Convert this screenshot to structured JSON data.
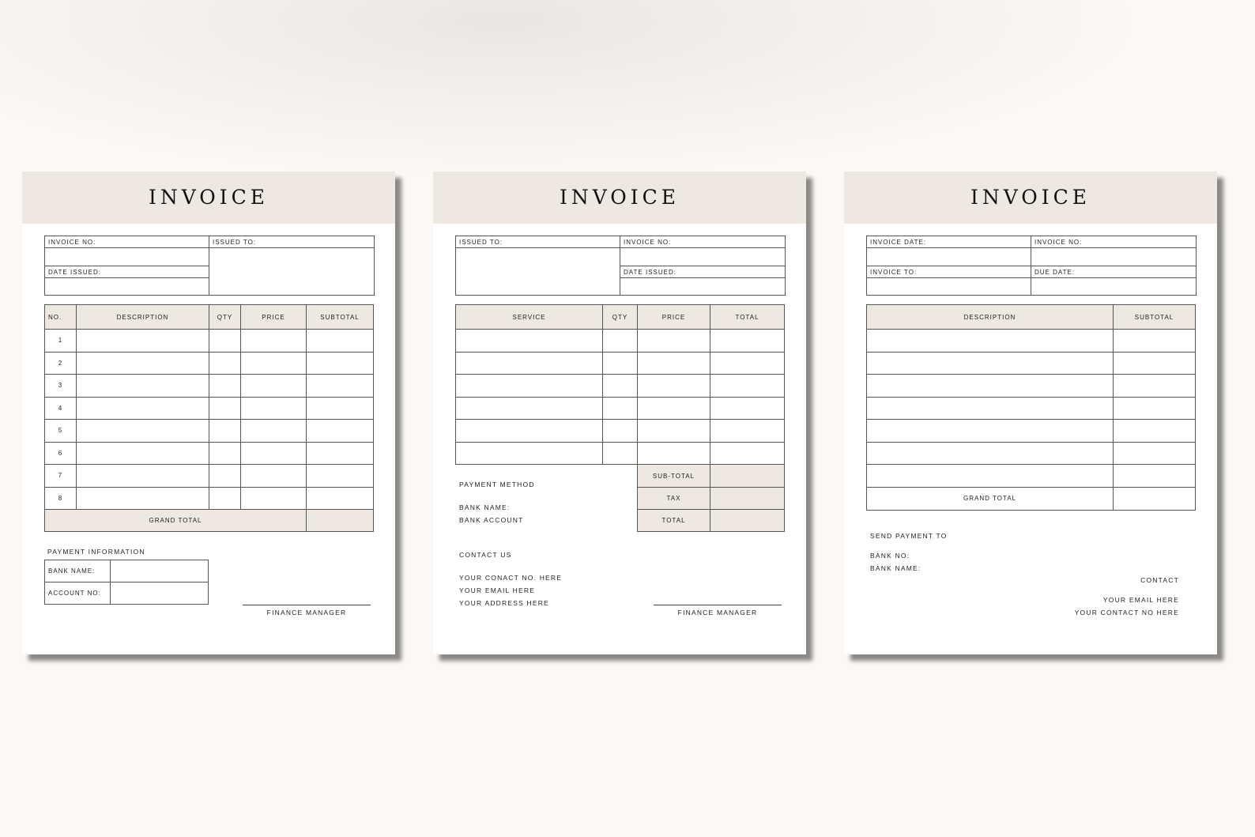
{
  "colors": {
    "background": "#fbf8f5",
    "header_band": "#ede9e2",
    "page": "#ffffff",
    "lines": "#555555"
  },
  "pages": [
    {
      "title": "INVOICE",
      "info": {
        "invoice_no": "INVOICE NO:",
        "issued_to": "ISSUED TO:",
        "date_issued": "DATE ISSUED:"
      },
      "table": {
        "headers": [
          "NO.",
          "DESCRIPTION",
          "QTY",
          "PRICE",
          "SUBTOTAL"
        ],
        "row_numbers": [
          "1",
          "2",
          "3",
          "4",
          "5",
          "6",
          "7",
          "8"
        ],
        "grand_total": "GRAND TOTAL"
      },
      "payment": {
        "heading": "PAYMENT INFORMATION",
        "bank_name": "BANK NAME:",
        "account_no": "ACCOUNT NO:"
      },
      "signature": "FINANCE MANAGER"
    },
    {
      "title": "INVOICE",
      "info": {
        "issued_to": "ISSUED TO:",
        "invoice_no": "INVOICE NO:",
        "date_issued": "DATE ISSUED:"
      },
      "table": {
        "headers": [
          "SERVICE",
          "QTY",
          "PRICE",
          "TOTAL"
        ],
        "row_count": 6
      },
      "summary": {
        "subtotal": "SUB-TOTAL",
        "tax": "TAX",
        "total": "TOTAL"
      },
      "payment": {
        "heading": "PAYMENT METHOD",
        "bank_name": "BANK NAME:",
        "bank_account": "BANK ACCOUNT"
      },
      "contact": {
        "heading": "CONTACT US",
        "phone": "YOUR CONACT NO. HERE",
        "email": "YOUR EMAIL HERE",
        "address": "YOUR ADDRESS HERE"
      },
      "signature": "FINANCE MANAGER"
    },
    {
      "title": "INVOICE",
      "info": {
        "invoice_date": "INVOICE DATE:",
        "invoice_no": "INVOICE NO:",
        "invoice_to": "INVOICE TO:",
        "due_date": "DUE DATE:"
      },
      "table": {
        "headers": [
          "DESCRIPTION",
          "SUBTOTAL"
        ],
        "row_count": 7,
        "grand_total": "GRAND TOTAL"
      },
      "payment": {
        "heading": "SEND PAYMENT TO",
        "bank_no": "BANK NO:",
        "bank_name": "BANK NAME:"
      },
      "contact": {
        "heading": "CONTACT",
        "email": "YOUR EMAIL HERE",
        "phone": "YOUR CONTACT NO HERE"
      }
    }
  ]
}
